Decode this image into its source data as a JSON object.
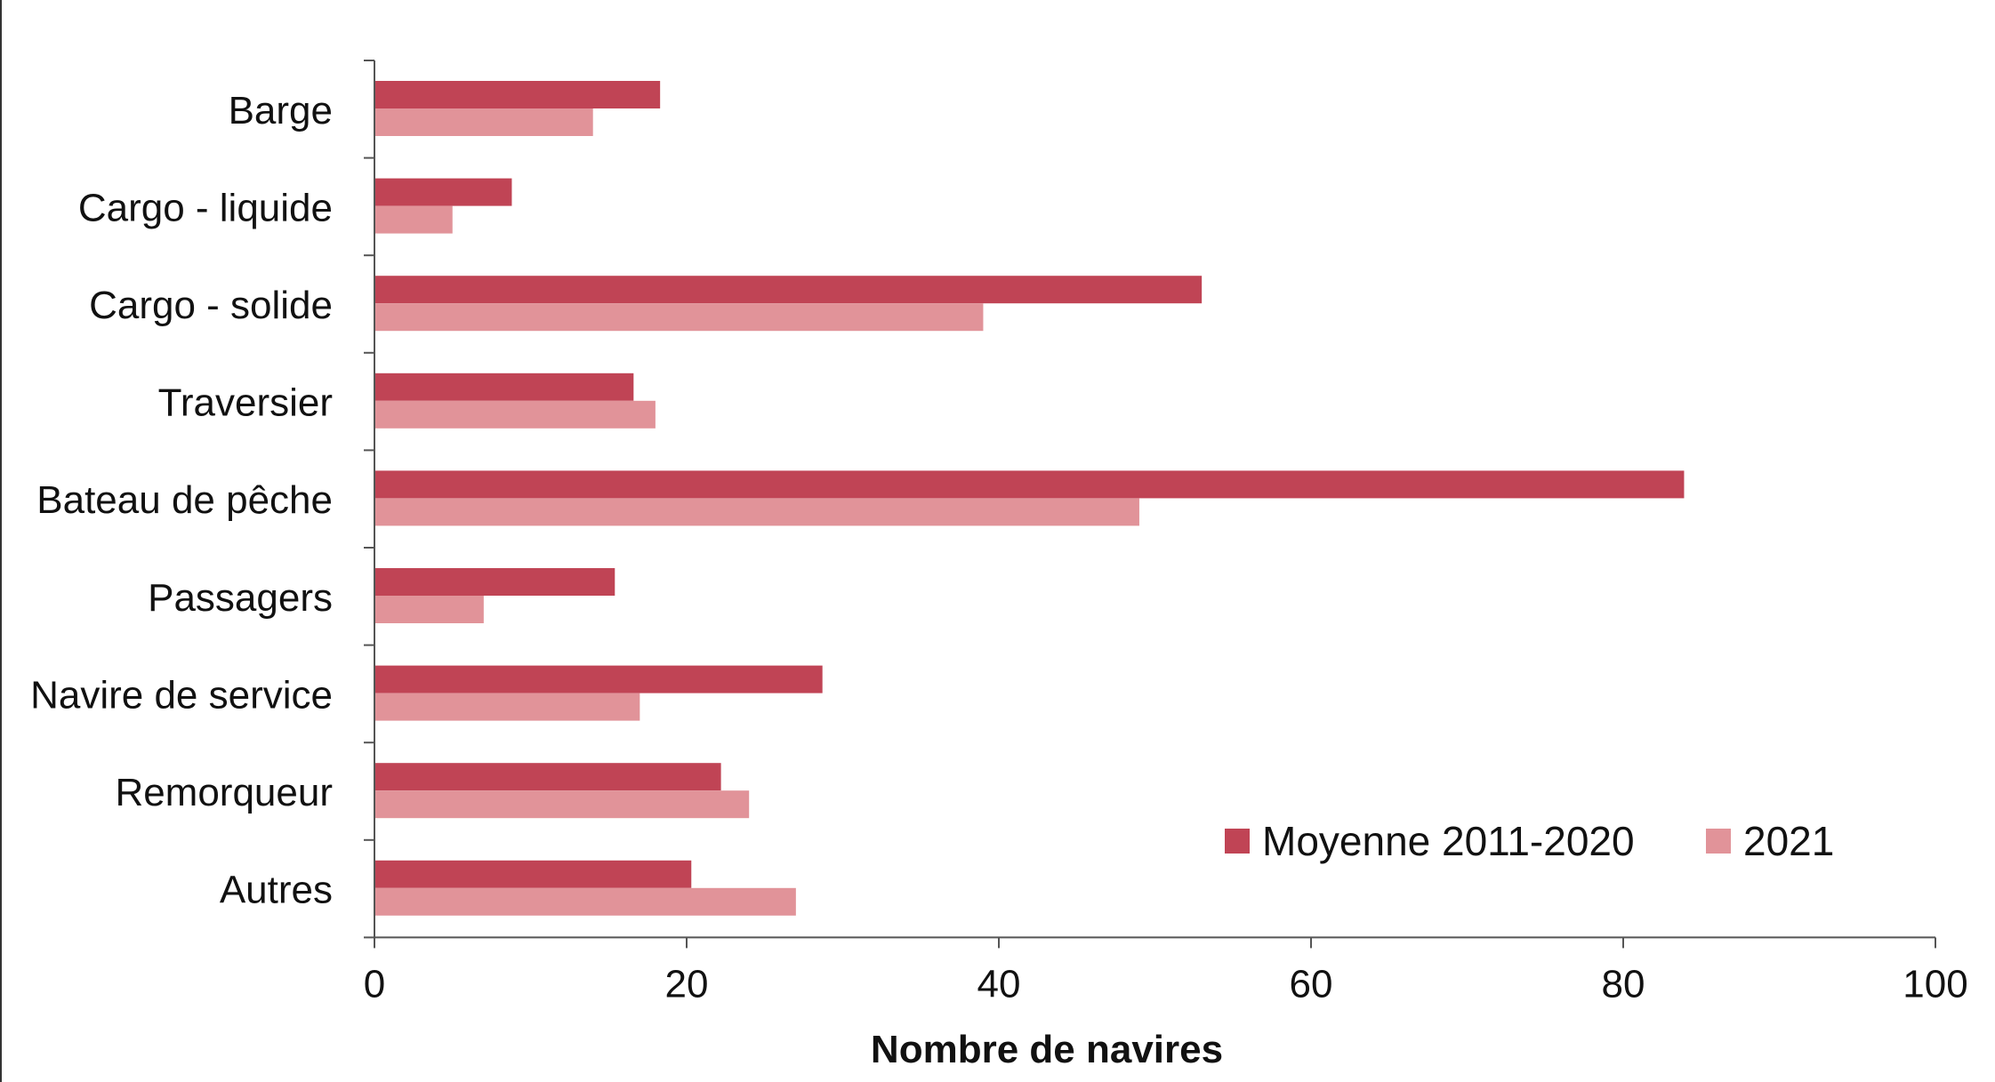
{
  "chart_data": {
    "type": "bar",
    "orientation": "horizontal",
    "title": "",
    "xlabel": "Nombre de navires",
    "ylabel": "",
    "xlim": [
      0,
      100
    ],
    "xticks": [
      "0",
      "20",
      "40",
      "60",
      "80",
      "100"
    ],
    "categories": [
      "Barge",
      "Cargo - liquide",
      "Cargo - solide",
      "Traversier",
      "Bateau de pêche",
      "Passagers",
      "Navire de service",
      "Remorqueur",
      "Autres"
    ],
    "series": [
      {
        "name": "Moyenne 2011-2020",
        "color": "#c04455",
        "values": [
          18.3,
          8.8,
          53.0,
          16.6,
          83.9,
          15.4,
          28.7,
          22.2,
          20.3
        ]
      },
      {
        "name": "2021",
        "color": "#e19399",
        "values": [
          14,
          5,
          39,
          18,
          49,
          7,
          17,
          24,
          27
        ]
      }
    ],
    "grid": false,
    "legend_position": "bottom-right"
  }
}
